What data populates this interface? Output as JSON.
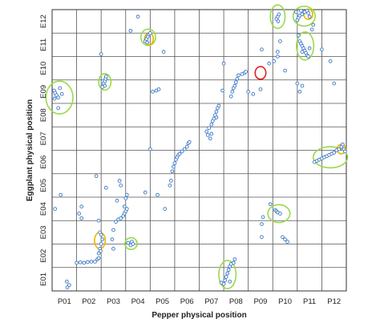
{
  "chart_data": {
    "type": "scatter",
    "xlabel": "Pepper physical position",
    "ylabel": "Eggplant physical position",
    "x_categories": [
      "P01",
      "P02",
      "P03",
      "P04",
      "P05",
      "P06",
      "P07",
      "P08",
      "P09",
      "P10",
      "P11",
      "P12"
    ],
    "y_categories": [
      "E01",
      "E02",
      "E03",
      "E04",
      "E05",
      "E06",
      "E07",
      "E08",
      "E09",
      "E10",
      "E11",
      "E12"
    ],
    "xlim": [
      0,
      12
    ],
    "ylim": [
      0,
      12
    ],
    "grid": true,
    "marker_color": "#3a78c4",
    "points": [
      [
        0.08,
        8.55
      ],
      [
        0.12,
        8.45
      ],
      [
        0.18,
        8.35
      ],
      [
        0.25,
        8.25
      ],
      [
        0.32,
        8.65
      ],
      [
        0.4,
        8.4
      ],
      [
        0.1,
        8.2
      ],
      [
        0.25,
        7.8
      ],
      [
        0.35,
        4.1
      ],
      [
        0.12,
        3.5
      ],
      [
        0.6,
        0.4
      ],
      [
        0.7,
        0.25
      ],
      [
        0.62,
        0.15
      ],
      [
        1.0,
        1.2
      ],
      [
        1.15,
        1.22
      ],
      [
        1.3,
        1.2
      ],
      [
        1.45,
        1.23
      ],
      [
        1.6,
        1.25
      ],
      [
        1.75,
        1.25
      ],
      [
        1.85,
        1.35
      ],
      [
        1.9,
        1.6
      ],
      [
        1.95,
        1.8
      ],
      [
        2.0,
        2.0
      ],
      [
        2.05,
        2.2
      ],
      [
        2.0,
        2.4
      ],
      [
        1.95,
        2.5
      ],
      [
        1.9,
        1.4
      ],
      [
        1.98,
        1.7
      ],
      [
        2.5,
        1.8
      ],
      [
        2.45,
        2.2
      ],
      [
        2.5,
        2.6
      ],
      [
        2.6,
        2.95
      ],
      [
        2.7,
        3.05
      ],
      [
        2.8,
        3.1
      ],
      [
        2.9,
        3.2
      ],
      [
        2.95,
        3.3
      ],
      [
        3.0,
        3.4
      ],
      [
        3.05,
        3.5
      ],
      [
        2.95,
        3.6
      ],
      [
        2.65,
        3.85
      ],
      [
        2.1,
        8.85
      ],
      [
        2.15,
        8.95
      ],
      [
        2.18,
        9.05
      ],
      [
        2.2,
        9.15
      ],
      [
        2.15,
        8.75
      ],
      [
        2.05,
        8.7
      ],
      [
        2.0,
        10.1
      ],
      [
        1.2,
        3.6
      ],
      [
        1.1,
        3.3
      ],
      [
        1.2,
        3.1
      ],
      [
        1.9,
        3.0
      ],
      [
        2.2,
        4.4
      ],
      [
        1.8,
        4.9
      ],
      [
        2.75,
        4.7
      ],
      [
        2.8,
        4.5
      ],
      [
        3.05,
        4.1
      ],
      [
        3.0,
        3.95
      ],
      [
        3.1,
        2.05
      ],
      [
        3.2,
        1.95
      ],
      [
        3.25,
        2.1
      ],
      [
        3.3,
        2.0
      ],
      [
        3.5,
        11.7
      ],
      [
        3.2,
        11.1
      ],
      [
        3.8,
        4.2
      ],
      [
        4.0,
        6.05
      ],
      [
        4.3,
        4.1
      ],
      [
        4.55,
        10.2
      ],
      [
        4.1,
        8.5
      ],
      [
        4.25,
        8.55
      ],
      [
        4.35,
        8.6
      ],
      [
        3.8,
        10.65
      ],
      [
        3.85,
        10.75
      ],
      [
        3.9,
        10.85
      ],
      [
        3.95,
        10.95
      ],
      [
        4.0,
        11.0
      ],
      [
        3.88,
        10.6
      ],
      [
        4.9,
        5.1
      ],
      [
        4.95,
        5.3
      ],
      [
        5.0,
        5.45
      ],
      [
        5.05,
        5.6
      ],
      [
        5.1,
        5.7
      ],
      [
        5.15,
        5.8
      ],
      [
        5.2,
        5.85
      ],
      [
        5.3,
        5.95
      ],
      [
        5.4,
        6.05
      ],
      [
        5.5,
        6.15
      ],
      [
        5.55,
        6.3
      ],
      [
        5.6,
        6.35
      ],
      [
        4.8,
        4.5
      ],
      [
        4.85,
        4.7
      ],
      [
        4.6,
        3.5
      ],
      [
        6.3,
        6.8
      ],
      [
        6.4,
        6.95
      ],
      [
        6.5,
        7.1
      ],
      [
        6.55,
        7.25
      ],
      [
        6.6,
        7.35
      ],
      [
        6.65,
        7.5
      ],
      [
        6.7,
        7.65
      ],
      [
        6.75,
        7.8
      ],
      [
        6.8,
        7.9
      ],
      [
        6.35,
        6.65
      ],
      [
        6.45,
        6.5
      ],
      [
        6.5,
        6.7
      ],
      [
        6.7,
        7.4
      ],
      [
        7.35,
        8.5
      ],
      [
        7.4,
        8.65
      ],
      [
        7.45,
        8.75
      ],
      [
        7.5,
        8.9
      ],
      [
        7.55,
        9.05
      ],
      [
        7.6,
        9.2
      ],
      [
        7.3,
        8.3
      ],
      [
        6.95,
        8.55
      ],
      [
        7.0,
        9.7
      ],
      [
        6.9,
        0.35
      ],
      [
        7.0,
        0.3
      ],
      [
        7.05,
        0.45
      ],
      [
        7.1,
        0.6
      ],
      [
        7.15,
        0.75
      ],
      [
        7.2,
        0.9
      ],
      [
        7.25,
        1.05
      ],
      [
        7.3,
        1.15
      ],
      [
        7.4,
        1.2
      ],
      [
        7.45,
        1.35
      ],
      [
        7.25,
        0.4
      ],
      [
        7.85,
        9.3
      ],
      [
        7.9,
        9.35
      ],
      [
        7.75,
        9.25
      ],
      [
        8.2,
        8.4
      ],
      [
        8.0,
        8.5
      ],
      [
        8.5,
        8.6
      ],
      [
        8.9,
        3.7
      ],
      [
        9.1,
        3.45
      ],
      [
        9.15,
        3.4
      ],
      [
        9.2,
        3.35
      ],
      [
        9.3,
        3.3
      ],
      [
        8.6,
        3.15
      ],
      [
        8.55,
        2.85
      ],
      [
        8.55,
        2.3
      ],
      [
        8.85,
        9.7
      ],
      [
        8.55,
        10.3
      ],
      [
        9.05,
        9.8
      ],
      [
        9.2,
        10.2
      ],
      [
        9.2,
        10.0
      ],
      [
        9.15,
        11.6
      ],
      [
        9.2,
        11.7
      ],
      [
        9.25,
        11.8
      ],
      [
        9.22,
        11.5
      ],
      [
        9.3,
        10.65
      ],
      [
        10.0,
        11.55
      ],
      [
        10.05,
        11.65
      ],
      [
        10.1,
        11.75
      ],
      [
        10.2,
        11.8
      ],
      [
        10.3,
        11.9
      ],
      [
        10.4,
        11.95
      ],
      [
        10.45,
        11.85
      ],
      [
        10.5,
        11.7
      ],
      [
        10.15,
        11.95
      ],
      [
        9.95,
        11.9
      ],
      [
        10.1,
        10.65
      ],
      [
        10.15,
        10.55
      ],
      [
        10.2,
        10.45
      ],
      [
        10.25,
        10.35
      ],
      [
        10.3,
        10.25
      ],
      [
        10.35,
        10.15
      ],
      [
        10.4,
        10.05
      ],
      [
        10.45,
        10.0
      ],
      [
        10.5,
        10.35
      ],
      [
        10.2,
        10.2
      ],
      [
        10.05,
        10.9
      ],
      [
        10.6,
        11.15
      ],
      [
        10.65,
        11.35
      ],
      [
        11.0,
        10.3
      ],
      [
        9.5,
        9.4
      ],
      [
        10.0,
        8.85
      ],
      [
        10.1,
        8.5
      ],
      [
        10.2,
        8.75
      ],
      [
        10.7,
        5.5
      ],
      [
        10.8,
        5.55
      ],
      [
        10.9,
        5.6
      ],
      [
        11.0,
        5.65
      ],
      [
        11.1,
        5.7
      ],
      [
        11.2,
        5.75
      ],
      [
        11.3,
        5.8
      ],
      [
        11.4,
        5.85
      ],
      [
        11.5,
        5.9
      ],
      [
        11.6,
        6.0
      ],
      [
        11.7,
        6.05
      ],
      [
        11.8,
        6.15
      ],
      [
        11.85,
        6.25
      ],
      [
        11.9,
        6.05
      ],
      [
        11.95,
        5.95
      ],
      [
        9.4,
        2.3
      ],
      [
        9.5,
        2.2
      ],
      [
        9.6,
        2.1
      ],
      [
        11.35,
        9.8
      ],
      [
        11.5,
        8.85
      ]
    ],
    "highlights": [
      {
        "cx": 0.3,
        "cy": 8.25,
        "rx": 0.55,
        "ry": 0.7,
        "color": "#9ad94a"
      },
      {
        "cx": 2.15,
        "cy": 8.92,
        "rx": 0.25,
        "ry": 0.35,
        "color": "#9ad94a"
      },
      {
        "cx": 3.92,
        "cy": 10.82,
        "rx": 0.3,
        "ry": 0.35,
        "color": "#9ad94a"
      },
      {
        "cx": 9.2,
        "cy": 11.7,
        "rx": 0.3,
        "ry": 0.5,
        "color": "#9ad94a"
      },
      {
        "cx": 10.28,
        "cy": 11.72,
        "rx": 0.45,
        "ry": 0.42,
        "color": "#9ad94a"
      },
      {
        "cx": 10.32,
        "cy": 10.45,
        "rx": 0.35,
        "ry": 0.6,
        "color": "#9ad94a"
      },
      {
        "cx": 11.35,
        "cy": 5.7,
        "rx": 0.7,
        "ry": 0.45,
        "color": "#9ad94a"
      },
      {
        "cx": 9.25,
        "cy": 3.3,
        "rx": 0.45,
        "ry": 0.38,
        "color": "#9ad94a"
      },
      {
        "cx": 3.22,
        "cy": 2.02,
        "rx": 0.25,
        "ry": 0.25,
        "color": "#9ad94a"
      },
      {
        "cx": 7.15,
        "cy": 0.7,
        "rx": 0.35,
        "ry": 0.6,
        "color": "#9ad94a"
      },
      {
        "cx": 3.95,
        "cy": 10.75,
        "rx": 0.18,
        "ry": 0.25,
        "color": "#f0b400"
      },
      {
        "cx": 10.45,
        "cy": 11.8,
        "rx": 0.18,
        "ry": 0.22,
        "color": "#f0b400"
      },
      {
        "cx": 11.8,
        "cy": 6.05,
        "rx": 0.18,
        "ry": 0.2,
        "color": "#f0b400"
      },
      {
        "cx": 1.95,
        "cy": 2.15,
        "rx": 0.22,
        "ry": 0.35,
        "color": "#f0b400"
      },
      {
        "cx": 8.5,
        "cy": 9.3,
        "rx": 0.22,
        "ry": 0.27,
        "color": "#e02020"
      }
    ]
  }
}
